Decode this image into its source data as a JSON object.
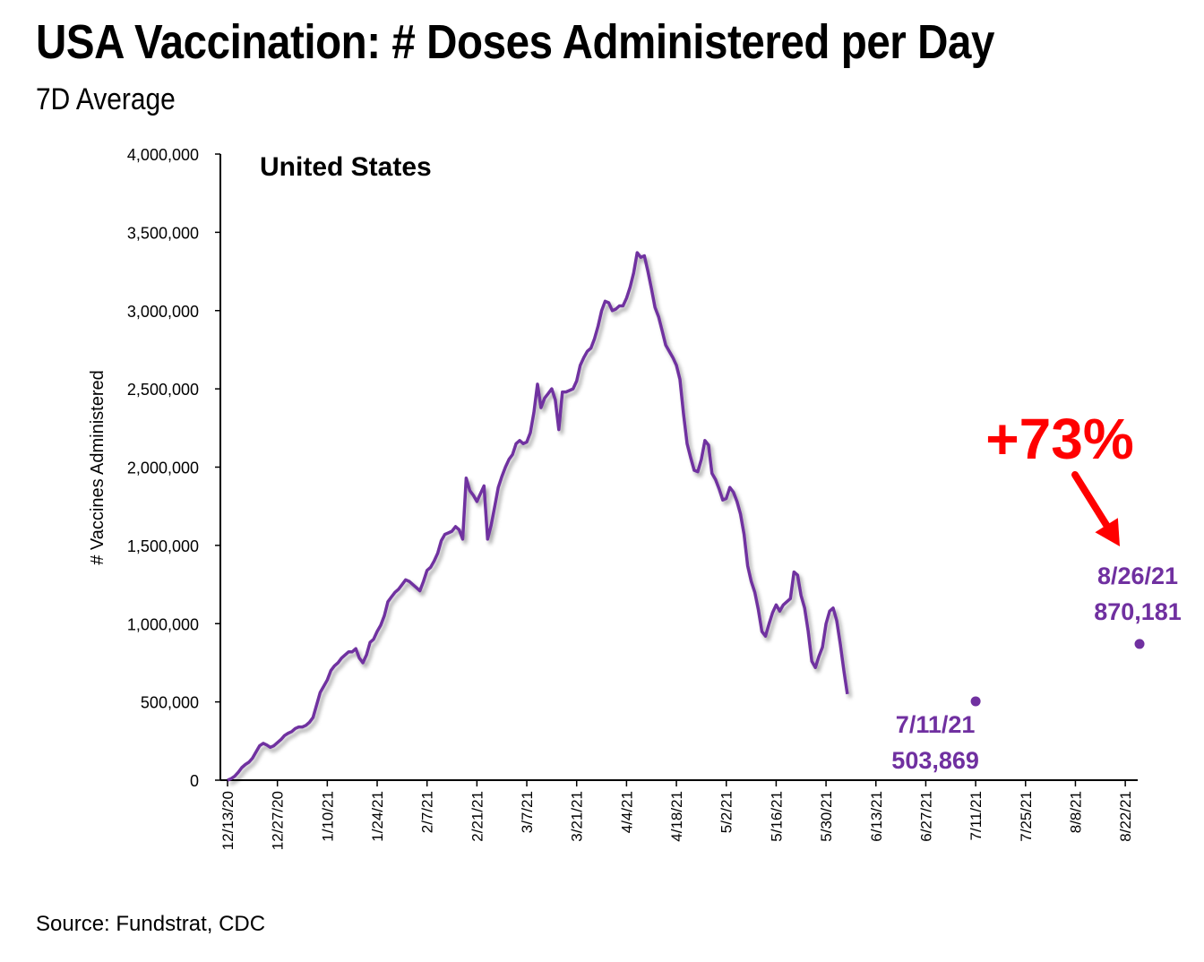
{
  "title": "USA Vaccination: # Doses Administered per Day",
  "subtitle": "7D Average",
  "source": "Source: Fundstrat, CDC",
  "colors": {
    "line": "#7030A0",
    "arrow": "#FF0000",
    "axis": "#000000"
  },
  "chart_data": {
    "type": "line",
    "title": "United States",
    "ylabel": "# Vaccines Administered",
    "xlabel": "",
    "ylim": [
      0,
      4000000
    ],
    "x_start": "12/13/20",
    "x_end": "8/26/21",
    "x_ticks": [
      "12/13/20",
      "12/27/20",
      "1/10/21",
      "1/24/21",
      "2/7/21",
      "2/21/21",
      "3/7/21",
      "3/21/21",
      "4/4/21",
      "4/18/21",
      "5/2/21",
      "5/16/21",
      "5/30/21",
      "6/13/21",
      "6/27/21",
      "7/11/21",
      "7/25/21",
      "8/8/21",
      "8/22/21"
    ],
    "y_ticks": [
      {
        "value": 0,
        "label": "0"
      },
      {
        "value": 500000,
        "label": "500,000"
      },
      {
        "value": 1000000,
        "label": "1,000,000"
      },
      {
        "value": 1500000,
        "label": "1,500,000"
      },
      {
        "value": 2000000,
        "label": "2,000,000"
      },
      {
        "value": 2500000,
        "label": "2,500,000"
      },
      {
        "value": 3000000,
        "label": "3,000,000"
      },
      {
        "value": 3500000,
        "label": "3,500,000"
      },
      {
        "value": 4000000,
        "label": "4,000,000"
      }
    ],
    "grid": false,
    "series": [
      {
        "values": [
          [
            "12/13/20",
            0
          ],
          [
            "12/14/20",
            10000
          ],
          [
            "12/15/20",
            25000
          ],
          [
            "12/16/20",
            50000
          ],
          [
            "12/17/20",
            80000
          ],
          [
            "12/18/20",
            100000
          ],
          [
            "12/19/20",
            115000
          ],
          [
            "12/20/20",
            140000
          ],
          [
            "12/21/20",
            180000
          ],
          [
            "12/22/20",
            220000
          ],
          [
            "12/23/20",
            235000
          ],
          [
            "12/24/20",
            225000
          ],
          [
            "12/25/20",
            210000
          ],
          [
            "12/26/20",
            220000
          ],
          [
            "12/27/20",
            240000
          ],
          [
            "12/28/20",
            260000
          ],
          [
            "12/29/20",
            285000
          ],
          [
            "12/30/20",
            300000
          ],
          [
            "12/31/20",
            310000
          ],
          [
            "1/1/21",
            330000
          ],
          [
            "1/2/21",
            340000
          ],
          [
            "1/3/21",
            340000
          ],
          [
            "1/4/21",
            350000
          ],
          [
            "1/5/21",
            370000
          ],
          [
            "1/6/21",
            400000
          ],
          [
            "1/7/21",
            480000
          ],
          [
            "1/8/21",
            560000
          ],
          [
            "1/9/21",
            600000
          ],
          [
            "1/10/21",
            640000
          ],
          [
            "1/11/21",
            700000
          ],
          [
            "1/12/21",
            730000
          ],
          [
            "1/13/21",
            750000
          ],
          [
            "1/14/21",
            780000
          ],
          [
            "1/15/21",
            800000
          ],
          [
            "1/16/21",
            820000
          ],
          [
            "1/17/21",
            820000
          ],
          [
            "1/18/21",
            840000
          ],
          [
            "1/19/21",
            780000
          ],
          [
            "1/20/21",
            750000
          ],
          [
            "1/21/21",
            800000
          ],
          [
            "1/22/21",
            880000
          ],
          [
            "1/23/21",
            900000
          ],
          [
            "1/24/21",
            950000
          ],
          [
            "1/25/21",
            990000
          ],
          [
            "1/26/21",
            1050000
          ],
          [
            "1/27/21",
            1140000
          ],
          [
            "1/28/21",
            1170000
          ],
          [
            "1/29/21",
            1200000
          ],
          [
            "1/30/21",
            1220000
          ],
          [
            "1/31/21",
            1250000
          ],
          [
            "2/1/21",
            1280000
          ],
          [
            "2/2/21",
            1270000
          ],
          [
            "2/3/21",
            1250000
          ],
          [
            "2/4/21",
            1230000
          ],
          [
            "2/5/21",
            1210000
          ],
          [
            "2/6/21",
            1270000
          ],
          [
            "2/7/21",
            1340000
          ],
          [
            "2/8/21",
            1360000
          ],
          [
            "2/9/21",
            1400000
          ],
          [
            "2/10/21",
            1450000
          ],
          [
            "2/11/21",
            1530000
          ],
          [
            "2/12/21",
            1570000
          ],
          [
            "2/13/21",
            1580000
          ],
          [
            "2/14/21",
            1590000
          ],
          [
            "2/15/21",
            1620000
          ],
          [
            "2/16/21",
            1600000
          ],
          [
            "2/17/21",
            1540000
          ],
          [
            "2/18/21",
            1930000
          ],
          [
            "2/19/21",
            1850000
          ],
          [
            "2/20/21",
            1820000
          ],
          [
            "2/21/21",
            1780000
          ],
          [
            "2/22/21",
            1830000
          ],
          [
            "2/23/21",
            1880000
          ],
          [
            "2/24/21",
            1540000
          ],
          [
            "2/25/21",
            1630000
          ],
          [
            "2/26/21",
            1750000
          ],
          [
            "2/27/21",
            1870000
          ],
          [
            "2/28/21",
            1940000
          ],
          [
            "3/1/21",
            2000000
          ],
          [
            "3/2/21",
            2050000
          ],
          [
            "3/3/21",
            2080000
          ],
          [
            "3/4/21",
            2150000
          ],
          [
            "3/5/21",
            2170000
          ],
          [
            "3/6/21",
            2150000
          ],
          [
            "3/7/21",
            2160000
          ],
          [
            "3/8/21",
            2220000
          ],
          [
            "3/9/21",
            2350000
          ],
          [
            "3/10/21",
            2530000
          ],
          [
            "3/11/21",
            2380000
          ],
          [
            "3/12/21",
            2440000
          ],
          [
            "3/13/21",
            2470000
          ],
          [
            "3/14/21",
            2500000
          ],
          [
            "3/15/21",
            2430000
          ],
          [
            "3/16/21",
            2240000
          ],
          [
            "3/17/21",
            2480000
          ],
          [
            "3/18/21",
            2480000
          ],
          [
            "3/19/21",
            2490000
          ],
          [
            "3/20/21",
            2500000
          ],
          [
            "3/21/21",
            2550000
          ],
          [
            "3/22/21",
            2650000
          ],
          [
            "3/23/21",
            2700000
          ],
          [
            "3/24/21",
            2740000
          ],
          [
            "3/25/21",
            2760000
          ],
          [
            "3/26/21",
            2820000
          ],
          [
            "3/27/21",
            2900000
          ],
          [
            "3/28/21",
            3000000
          ],
          [
            "3/29/21",
            3060000
          ],
          [
            "3/30/21",
            3050000
          ],
          [
            "3/31/21",
            3000000
          ],
          [
            "4/1/21",
            3010000
          ],
          [
            "4/2/21",
            3030000
          ],
          [
            "4/3/21",
            3030000
          ],
          [
            "4/4/21",
            3080000
          ],
          [
            "4/5/21",
            3150000
          ],
          [
            "4/6/21",
            3240000
          ],
          [
            "4/7/21",
            3370000
          ],
          [
            "4/8/21",
            3340000
          ],
          [
            "4/9/21",
            3350000
          ],
          [
            "4/10/21",
            3250000
          ],
          [
            "4/11/21",
            3140000
          ],
          [
            "4/12/21",
            3020000
          ],
          [
            "4/13/21",
            2960000
          ],
          [
            "4/14/21",
            2870000
          ],
          [
            "4/15/21",
            2780000
          ],
          [
            "4/16/21",
            2740000
          ],
          [
            "4/17/21",
            2700000
          ],
          [
            "4/18/21",
            2650000
          ],
          [
            "4/19/21",
            2560000
          ],
          [
            "4/20/21",
            2340000
          ],
          [
            "4/21/21",
            2150000
          ],
          [
            "4/22/21",
            2060000
          ],
          [
            "4/23/21",
            1980000
          ],
          [
            "4/24/21",
            1970000
          ],
          [
            "4/25/21",
            2050000
          ],
          [
            "4/26/21",
            2170000
          ],
          [
            "4/27/21",
            2140000
          ],
          [
            "4/28/21",
            1960000
          ],
          [
            "4/29/21",
            1920000
          ],
          [
            "4/30/21",
            1860000
          ],
          [
            "5/1/21",
            1790000
          ],
          [
            "5/2/21",
            1800000
          ],
          [
            "5/3/21",
            1870000
          ],
          [
            "5/4/21",
            1840000
          ],
          [
            "5/5/21",
            1780000
          ],
          [
            "5/6/21",
            1700000
          ],
          [
            "5/7/21",
            1570000
          ],
          [
            "5/8/21",
            1370000
          ],
          [
            "5/9/21",
            1270000
          ],
          [
            "5/10/21",
            1200000
          ],
          [
            "5/11/21",
            1090000
          ],
          [
            "5/12/21",
            950000
          ],
          [
            "5/13/21",
            920000
          ],
          [
            "5/14/21",
            1000000
          ],
          [
            "5/15/21",
            1070000
          ],
          [
            "5/16/21",
            1120000
          ],
          [
            "5/17/21",
            1080000
          ],
          [
            "5/18/21",
            1120000
          ],
          [
            "5/19/21",
            1140000
          ],
          [
            "5/20/21",
            1160000
          ],
          [
            "5/21/21",
            1330000
          ],
          [
            "5/22/21",
            1310000
          ],
          [
            "5/23/21",
            1180000
          ],
          [
            "5/24/21",
            1100000
          ],
          [
            "5/25/21",
            950000
          ],
          [
            "5/26/21",
            760000
          ],
          [
            "5/27/21",
            720000
          ],
          [
            "5/28/21",
            790000
          ],
          [
            "5/29/21",
            850000
          ],
          [
            "5/30/21",
            1000000
          ],
          [
            "5/31/21",
            1080000
          ],
          [
            "6/1/21",
            1100000
          ],
          [
            "6/2/21",
            1020000
          ],
          [
            "6/3/21",
            870000
          ],
          [
            "6/4/21",
            700000
          ],
          [
            "6/5/21",
            550000
          ]
        ],
        "_comment": "",
        "dates_shifted": false
      }
    ],
    "annotations": [
      {
        "date": "7/11/21",
        "value": 503869,
        "label_date": "7/11/21",
        "label_value": "503,869"
      },
      {
        "date": "8/26/21",
        "value": 870181,
        "label_date": "8/26/21",
        "label_value": "870,181"
      },
      {
        "text": "+73%"
      }
    ]
  }
}
